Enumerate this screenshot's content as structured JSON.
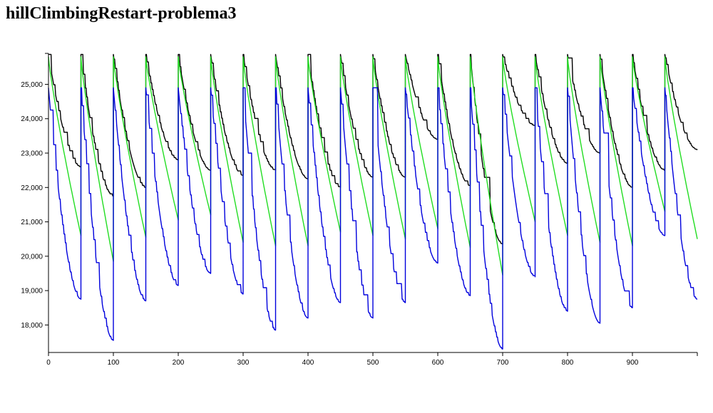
{
  "title": "hillClimbingRestart-problema3",
  "chart_data": {
    "type": "line",
    "title": "hillClimbingRestart-problema3",
    "xlabel": "",
    "ylabel": "",
    "xlim": [
      0,
      1000
    ],
    "ylim": [
      17200,
      25900
    ],
    "x_ticks": [
      0,
      100,
      200,
      300,
      400,
      500,
      600,
      700,
      800,
      900
    ],
    "x_tick_labels": [
      "0",
      "100",
      "200",
      "300",
      "400",
      "500",
      "600",
      "700",
      "800",
      "900"
    ],
    "y_ticks": [
      18000,
      19000,
      20000,
      21000,
      22000,
      23000,
      24000,
      25000
    ],
    "y_tick_labels": [
      "18,000",
      "19,000",
      "20,000",
      "21,000",
      "22,000",
      "23,000",
      "24,000",
      "25,000"
    ],
    "grid": false,
    "legend": false,
    "restart_period": 50,
    "series": [
      {
        "color": "#000000",
        "restart_value": 25870,
        "cycle_end_values": [
          22600,
          21750,
          22000,
          22800,
          22500,
          22350,
          22500,
          22250,
          22000,
          22300,
          22300,
          23400,
          22050,
          20350,
          23800,
          22700,
          23000,
          22000,
          22500,
          23100
        ]
      },
      {
        "color": "#22dd22",
        "restart_value": 25800,
        "cycle_end_values": [
          20600,
          19850,
          20550,
          21050,
          21200,
          20400,
          20300,
          20300,
          20700,
          20600,
          20500,
          20800,
          20250,
          19450,
          21000,
          20600,
          20400,
          20300,
          21300,
          20500
        ]
      },
      {
        "color": "#0000dd",
        "restart_value": 24900,
        "cycle_end_values": [
          18750,
          17550,
          18700,
          19150,
          19500,
          18900,
          17850,
          18200,
          18650,
          18200,
          18650,
          19800,
          18850,
          17300,
          19400,
          18400,
          18050,
          18500,
          20600,
          18750
        ]
      }
    ]
  }
}
